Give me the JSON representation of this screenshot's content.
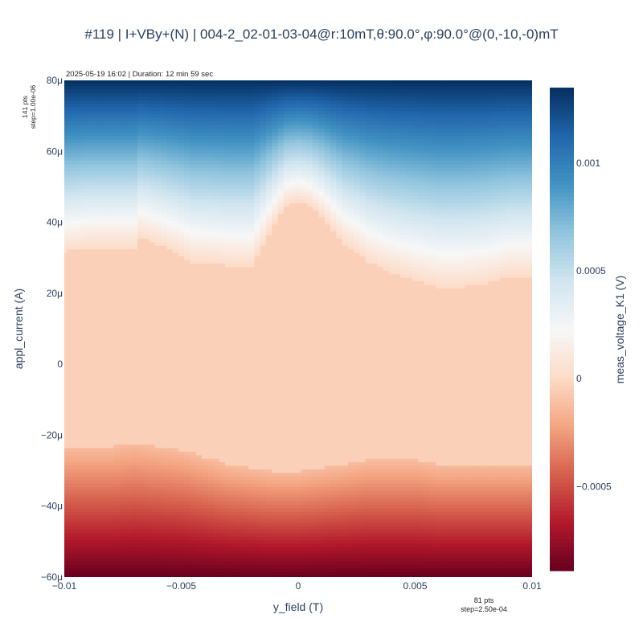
{
  "title": "#119 | I+VBy+(N) | 004-2_02-01-03-04@r:10mT,θ:90.0°,φ:90.0°@(0,-10,-0)mT",
  "meta": "2025-05-19 16:02 | Duration: 12 min 59 sec",
  "y_points": {
    "count": "141 pts",
    "step": "step=1.00e-06"
  },
  "x_points": {
    "count": "81 pts",
    "step": "step=2.50e-04"
  },
  "chart_data": {
    "type": "heatmap",
    "xlabel": "y_field (T)",
    "ylabel": "appl_current (A)",
    "colorbar_label": "meas_voltage_K1 (V)",
    "colorscale": "RdBu",
    "xlim": [
      -0.01,
      0.01
    ],
    "ylim": [
      -6e-05,
      8e-05
    ],
    "zlim": [
      -0.00089,
      0.00135
    ],
    "x_ticks": [
      {
        "value": -0.01,
        "label": "−0.01"
      },
      {
        "value": -0.005,
        "label": "−0.005"
      },
      {
        "value": 0,
        "label": "0"
      },
      {
        "value": 0.005,
        "label": "0.005"
      },
      {
        "value": 0.01,
        "label": "0.01"
      }
    ],
    "y_ticks": [
      {
        "value": -6e-05,
        "label": "−60μ"
      },
      {
        "value": -4e-05,
        "label": "−40μ"
      },
      {
        "value": -2e-05,
        "label": "−20μ"
      },
      {
        "value": 0,
        "label": "0"
      },
      {
        "value": 2e-05,
        "label": "20μ"
      },
      {
        "value": 4e-05,
        "label": "40μ"
      },
      {
        "value": 6e-05,
        "label": "60μ"
      },
      {
        "value": 8e-05,
        "label": "80μ"
      }
    ],
    "colorbar_ticks": [
      {
        "value": 0.001,
        "label": "0.001"
      },
      {
        "value": 0.0005,
        "label": "0.0005"
      },
      {
        "value": 0,
        "label": "0"
      },
      {
        "value": -0.0005,
        "label": "−0.0005"
      }
    ],
    "positive_threshold": {
      "field": [
        -0.01,
        -0.009,
        -0.008,
        -0.007,
        -0.0068,
        -0.006,
        -0.005,
        -0.0045,
        -0.004,
        -0.003,
        -0.002,
        -0.0015,
        -0.001,
        -0.0005,
        0,
        0.0005,
        0.001,
        0.0015,
        0.002,
        0.0025,
        0.003,
        0.004,
        0.005,
        0.006,
        0.007,
        0.008,
        0.009,
        0.01
      ],
      "current": [
        3.2e-05,
        3.3e-05,
        3.3e-05,
        3.3e-05,
        3.6e-05,
        3.4e-05,
        3.1e-05,
        2.9e-05,
        2.9e-05,
        2.8e-05,
        2.8e-05,
        3.4e-05,
        4e-05,
        4.5e-05,
        4.6e-05,
        4.5e-05,
        4.2e-05,
        3.8e-05,
        3.4e-05,
        3.2e-05,
        2.9e-05,
        2.6e-05,
        2.4e-05,
        2.2e-05,
        2.2e-05,
        2.3e-05,
        2.5e-05,
        2.5e-05
      ]
    },
    "negative_threshold": {
      "field": [
        -0.01,
        -0.009,
        -0.008,
        -0.007,
        -0.006,
        -0.005,
        -0.004,
        -0.003,
        -0.002,
        -0.001,
        0,
        0.001,
        0.002,
        0.003,
        0.004,
        0.005,
        0.006,
        0.007,
        0.008,
        0.009,
        0.01
      ],
      "current": [
        -2.3e-05,
        -2.3e-05,
        -2.3e-05,
        -2.2e-05,
        -2.3e-05,
        -2.4e-05,
        -2.6e-05,
        -2.8e-05,
        -2.9e-05,
        -3e-05,
        -3e-05,
        -2.9e-05,
        -2.8e-05,
        -2.7e-05,
        -2.7e-05,
        -2.7e-05,
        -2.8e-05,
        -2.8e-05,
        -2.8e-05,
        -2.8e-05,
        -2.8e-05
      ]
    },
    "plateau_value": -4e-05,
    "z_at_top": 0.00135,
    "z_at_bottom": -0.00089
  }
}
